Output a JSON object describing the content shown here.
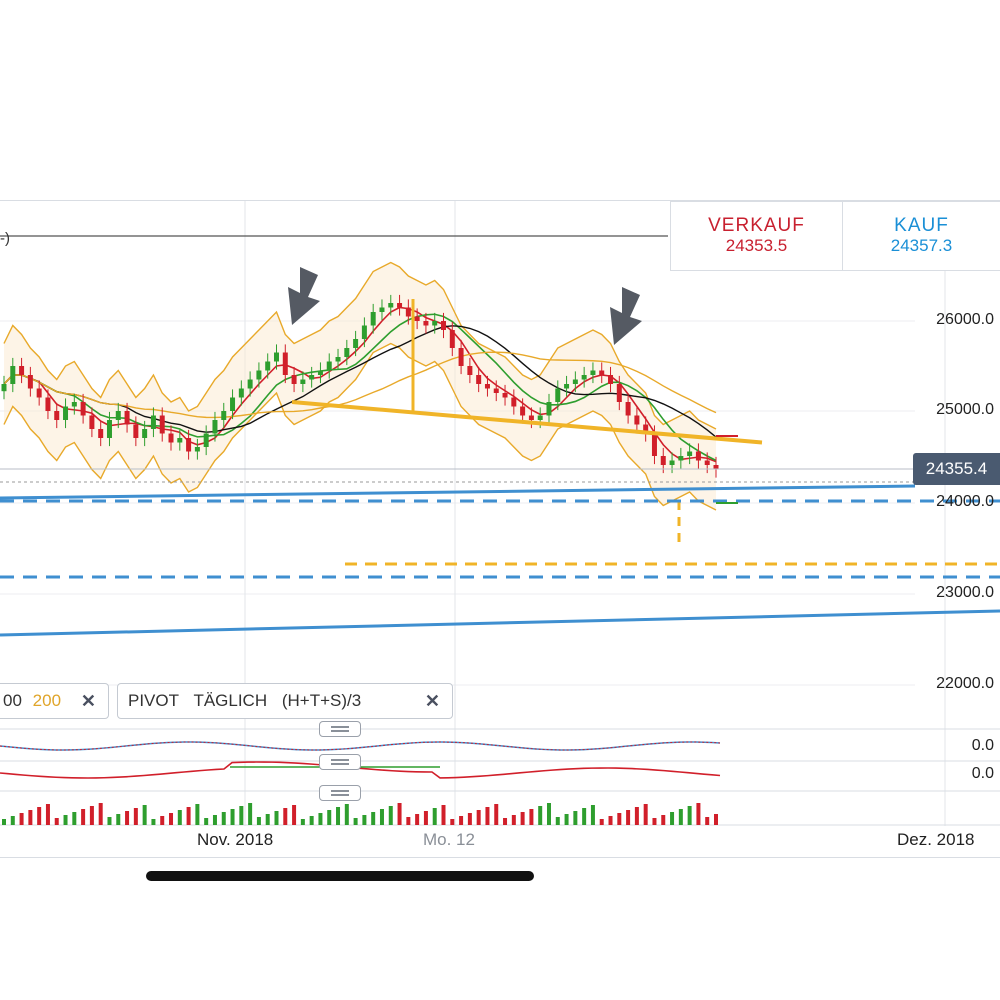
{
  "quote": {
    "sell_label": "VERKAUF",
    "sell_price": "24353.5",
    "buy_label": "KAUF",
    "buy_price": "24357.3"
  },
  "legend_fragment": "-)",
  "y_axis": {
    "ticks": [
      "26000.0",
      "25000.0",
      "24000.0",
      "23000.0",
      "22000.0"
    ],
    "current_price": "24355.4"
  },
  "indicators": {
    "ma_chip": {
      "value_a": "00",
      "value_b": "200"
    },
    "pivot_chip": {
      "label": "PIVOT",
      "mode": "TÄGLICH",
      "formula": "(H+T+S)/3"
    }
  },
  "sub_panels": {
    "panel1_value": "0.0",
    "panel2_value": "0.0"
  },
  "x_axis": {
    "labels": [
      "Nov. 2018",
      "Mo. 12",
      "Dez. 2018"
    ]
  },
  "colors": {
    "sell": "#c8202f",
    "buy": "#1a8fd6",
    "up": "#2e9e2e",
    "down": "#d11f2a",
    "bollinger": "#e8a92a",
    "support": "#f0b428",
    "trend": "#3f8fd0"
  },
  "icons": {
    "close": "close-icon",
    "arrow": "arrow-down-right-icon",
    "handle": "drag-handle-icon"
  },
  "chart_data": {
    "type": "candlestick",
    "instrument_price_scale": [
      22000,
      26000
    ],
    "close_series": [
      25300,
      25500,
      25400,
      25250,
      25150,
      25000,
      24900,
      25050,
      25100,
      24950,
      24800,
      24700,
      24900,
      25000,
      24850,
      24700,
      24800,
      24950,
      24750,
      24650,
      24700,
      24550,
      24600,
      24750,
      24900,
      25000,
      25150,
      25250,
      25350,
      25450,
      25550,
      25650,
      25400,
      25300,
      25350,
      25400,
      25450,
      25550,
      25600,
      25700,
      25800,
      25950,
      26100,
      26150,
      26200,
      26150,
      26050,
      26000,
      25950,
      26000,
      25900,
      25700,
      25500,
      25400,
      25300,
      25250,
      25200,
      25150,
      25050,
      24950,
      24900,
      24950,
      25100,
      25250,
      25300,
      25350,
      25400,
      25450,
      25400,
      25300,
      25100,
      24950,
      24850,
      24750,
      24500,
      24400,
      24450,
      24500,
      24550,
      24450,
      24400,
      24350
    ],
    "support_line_levels": [
      25100,
      24650
    ],
    "target_level": 23300,
    "pivot_levels": [
      24050,
      23200
    ],
    "trend_levels": [
      24050,
      22700
    ]
  }
}
